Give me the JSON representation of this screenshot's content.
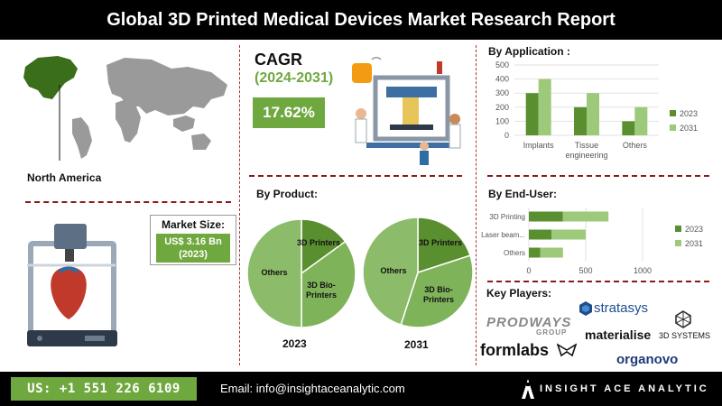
{
  "header": {
    "title": "Global 3D Printed Medical Devices Market Research Report"
  },
  "region": {
    "label": "North America"
  },
  "market_size": {
    "label": "Market Size:",
    "value_line1": "US$ 3.16 Bn",
    "value_line2": "(2023)"
  },
  "cagr": {
    "title": "CAGR",
    "years": "(2024-2031)",
    "value": "17.62%"
  },
  "colors": {
    "dark_green": "#5a8f30",
    "light_green": "#9cc97a",
    "pie_light": "#7fb35a",
    "accent_green": "#6fa83f",
    "separator": "#8b1a1a"
  },
  "chart_data": [
    {
      "type": "bar",
      "title": "By Application :",
      "categories": [
        "Implants",
        "Tissue engineering",
        "Others"
      ],
      "category_lines": [
        [
          "Implants"
        ],
        [
          "Tissue",
          "engineering"
        ],
        [
          "Others"
        ]
      ],
      "series": [
        {
          "name": "2023",
          "values": [
            300,
            200,
            100
          ]
        },
        {
          "name": "2031",
          "values": [
            400,
            300,
            200
          ]
        }
      ],
      "ylim": [
        0,
        500
      ],
      "yticks": [
        "0",
        "100",
        "200",
        "300",
        "400",
        "500"
      ],
      "grid": true,
      "legend": "right"
    },
    {
      "type": "bar",
      "orientation": "horizontal",
      "stacked": true,
      "title": "By  End-User:",
      "categories": [
        "3D Printing",
        "Laser beam...",
        "Others"
      ],
      "series": [
        {
          "name": "2023",
          "values": [
            300,
            200,
            100
          ]
        },
        {
          "name": "2031",
          "values": [
            400,
            300,
            200
          ]
        }
      ],
      "xlim": [
        0,
        1000
      ],
      "xticks": [
        "0",
        "500",
        "1000"
      ],
      "grid": true,
      "legend": "right"
    },
    {
      "type": "pie",
      "title": "By Product:",
      "caption": "2023",
      "slices": [
        {
          "label": "3D Printers",
          "value": 15
        },
        {
          "label": "3D Bio-Printers",
          "value": 35
        },
        {
          "label": "Others",
          "value": 50
        }
      ]
    },
    {
      "type": "pie",
      "caption": "2031",
      "slices": [
        {
          "label": "3D Printers",
          "value": 20
        },
        {
          "label": "3D Bio-Printers",
          "value": 35
        },
        {
          "label": "Others",
          "value": 45
        }
      ]
    }
  ],
  "key_players": {
    "title": "Key Players:",
    "logos": {
      "stratasys": "stratasys",
      "prodways": "PRODWAYS",
      "prodways_sub": "GROUP",
      "materialise": "materialise",
      "systems": "3D SYSTEMS",
      "formlabs": "formlabs",
      "organovo": "organovo"
    }
  },
  "footer": {
    "phone": "US: +1 551 226 6109",
    "email": "Email: info@insightaceanalytic.com",
    "brand": "INSIGHT ACE ANALYTIC"
  }
}
